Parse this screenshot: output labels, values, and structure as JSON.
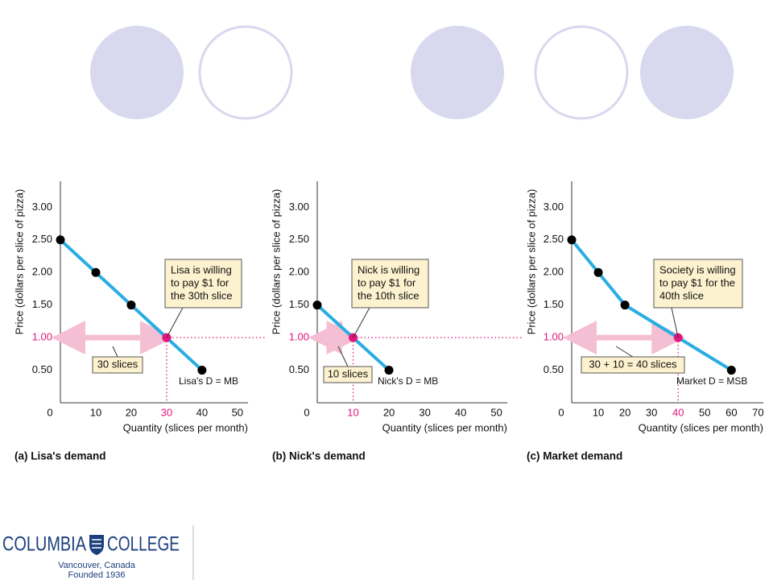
{
  "chart_data": [
    {
      "type": "line",
      "caption": "(a) Lisa's demand",
      "ylabel": "Price (dollars per slice of pizza)",
      "xlabel": "Quantity (slices per month)",
      "x": [
        0,
        10,
        20,
        30,
        40
      ],
      "values": [
        2.5,
        2.0,
        1.5,
        1.0,
        0.5
      ],
      "color": "#29ade2",
      "marker_color": "#000000",
      "highlight_color": "#e2157c",
      "highlight_index": 3,
      "xlim": [
        0,
        53
      ],
      "ylim": [
        0,
        3.4
      ],
      "xticks": [
        0,
        10,
        20,
        30,
        40,
        50
      ],
      "yticks": [
        {
          "value": 0.5,
          "label": "0.50"
        },
        {
          "value": 1,
          "label": "1.00"
        },
        {
          "value": 1.5,
          "label": "1.50"
        },
        {
          "value": 2,
          "label": "2.00"
        },
        {
          "value": 2.5,
          "label": "2.50"
        },
        {
          "value": 3,
          "label": "3.00"
        }
      ],
      "annotation": [
        "Lisa is willing",
        "to pay $1 for",
        "the 30th slice"
      ],
      "quantity_label": "30 slices",
      "curve_label": "Lisa's D = MB"
    },
    {
      "type": "line",
      "caption": "(b) Nick's demand",
      "ylabel": "Price (dollars per slice of pizza)",
      "xlabel": "Quantity (slices per month)",
      "x": [
        0,
        10,
        20
      ],
      "values": [
        1.5,
        1.0,
        0.5
      ],
      "color": "#29ade2",
      "marker_color": "#000000",
      "highlight_color": "#e2157c",
      "highlight_index": 1,
      "xlim": [
        0,
        53
      ],
      "ylim": [
        0,
        3.4
      ],
      "xticks": [
        0,
        10,
        20,
        30,
        40,
        50
      ],
      "yticks": [
        {
          "value": 0.5,
          "label": "0.50"
        },
        {
          "value": 1,
          "label": "1.00"
        },
        {
          "value": 1.5,
          "label": "1.50"
        },
        {
          "value": 2,
          "label": "2.00"
        },
        {
          "value": 2.5,
          "label": "2.50"
        },
        {
          "value": 3,
          "label": "3.00"
        }
      ],
      "annotation": [
        "Nick is willing",
        "to pay $1 for",
        "the 10th slice"
      ],
      "quantity_label": "10 slices",
      "curve_label": "Nick's D = MB"
    },
    {
      "type": "line",
      "caption": "(c) Market demand",
      "ylabel": "Price (dollars per slice of pizza)",
      "xlabel": "Quantity (slices per month)",
      "x": [
        0,
        10,
        20,
        40,
        60
      ],
      "values": [
        2.5,
        2.0,
        1.5,
        1.0,
        0.5
      ],
      "color": "#29ade2",
      "marker_color": "#000000",
      "highlight_color": "#e2157c",
      "highlight_index": 3,
      "xlim": [
        0,
        72
      ],
      "ylim": [
        0,
        3.4
      ],
      "xticks": [
        0,
        10,
        20,
        30,
        40,
        50,
        60,
        70
      ],
      "yticks": [
        {
          "value": 0.5,
          "label": "0.50"
        },
        {
          "value": 1,
          "label": "1.00"
        },
        {
          "value": 1.5,
          "label": "1.50"
        },
        {
          "value": 2,
          "label": "2.00"
        },
        {
          "value": 2.5,
          "label": "2.50"
        },
        {
          "value": 3,
          "label": "3.00"
        }
      ],
      "annotation": [
        "Society is willing",
        "to pay $1 for the",
        "40th slice"
      ],
      "quantity_label": "30 + 10 = 40 slices",
      "curve_label": "Market D = MSB"
    }
  ],
  "logo": {
    "name_left": "COLUMBIA",
    "name_right": "COLLEGE",
    "location": "Vancouver, Canada",
    "founded": "Founded 1936"
  }
}
